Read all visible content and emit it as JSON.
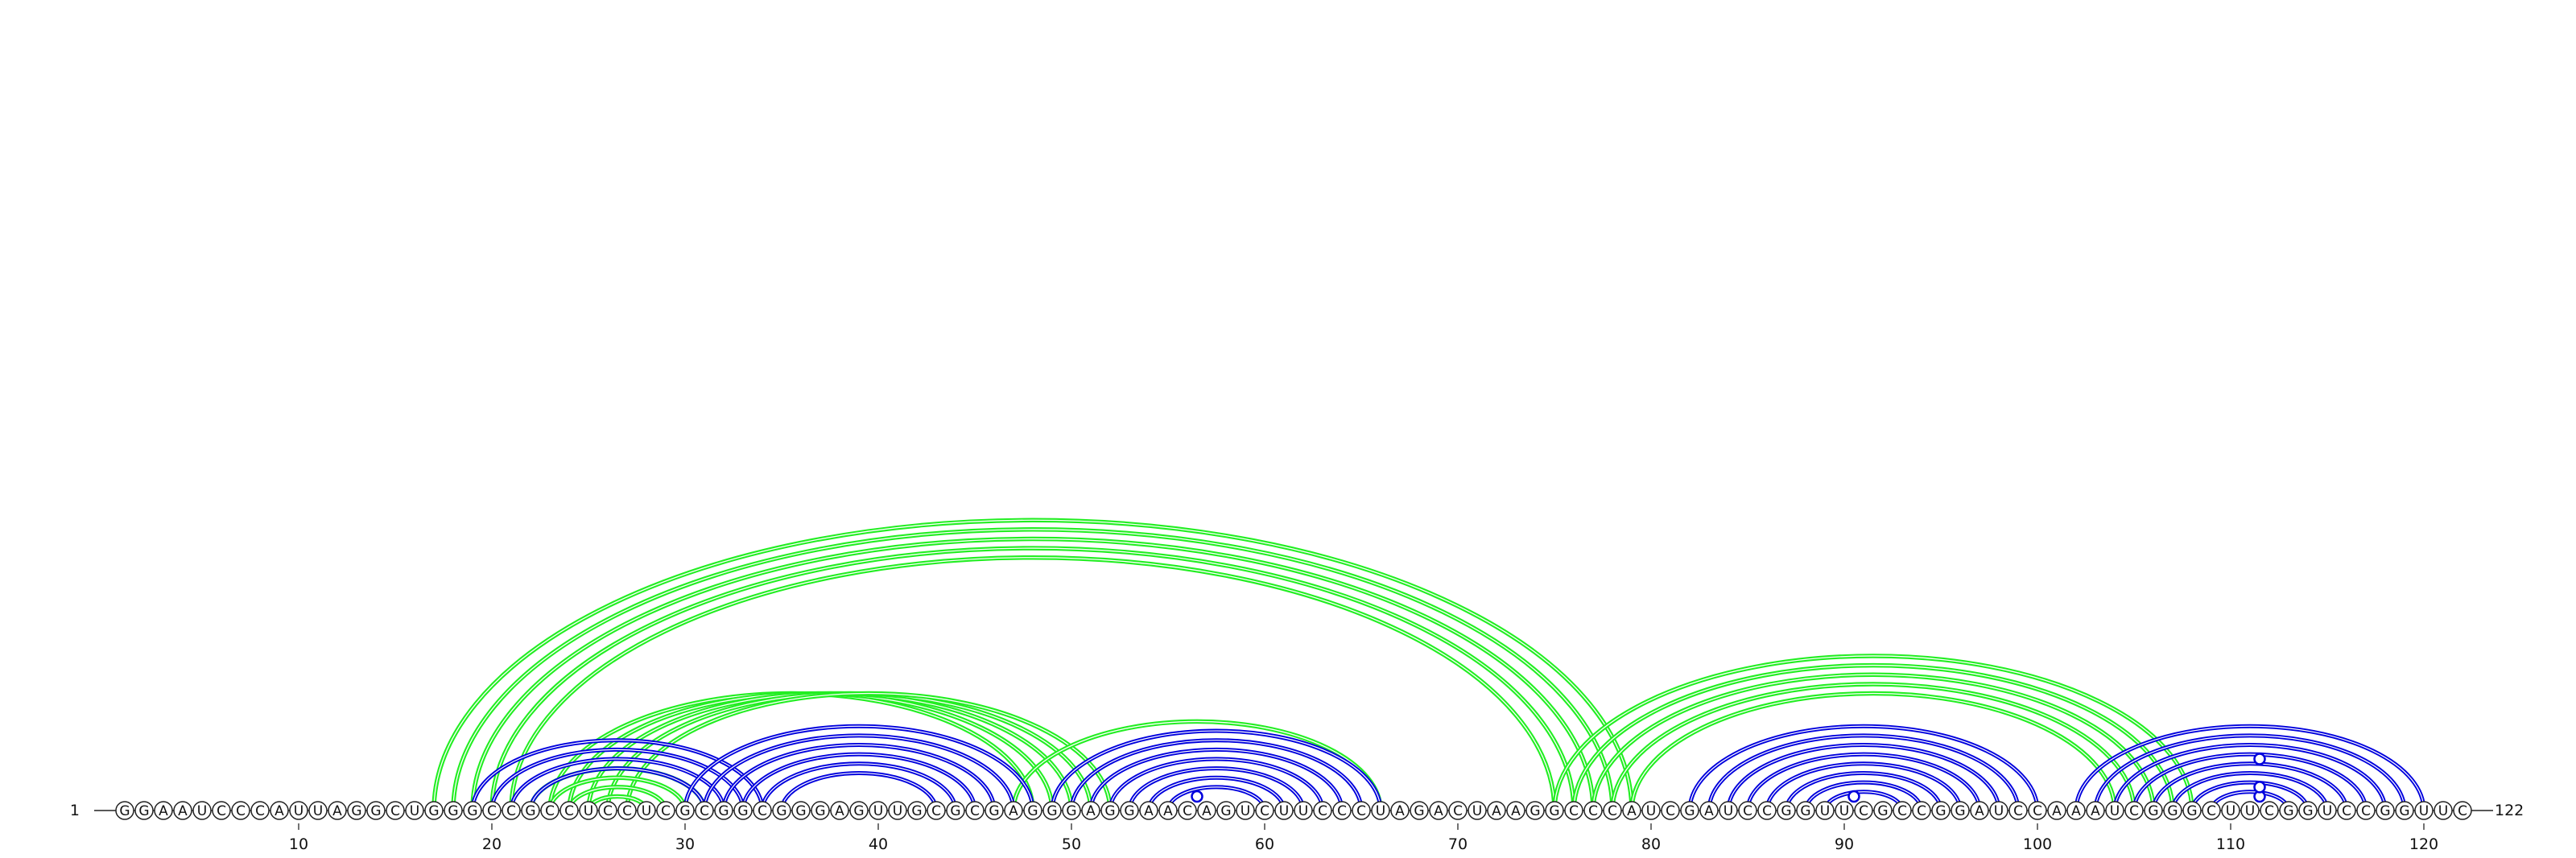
{
  "diagram": {
    "type": "rna-arc-diagram",
    "sequence": "GGAAUCCCAUUAGGCUGGGCCGCCUCCUCGCGGCGGGAGUUGCGCGAGGGAGGAACAGUCUUCCCUAGACUAAGGCCCAUCGAUCCGGUUCGCCGGAUCCAAAUCGGGCUUCGGUCCGGUUC",
    "start_label": "1",
    "end_label": "122",
    "tick_labels": [
      "10",
      "20",
      "30",
      "40",
      "50",
      "60",
      "70",
      "80",
      "90",
      "100",
      "110",
      "120"
    ],
    "colors": {
      "blue_arcs": "#0000dd",
      "green_arcs": "#22ee22",
      "nucleotide_outline": "#222222",
      "text": "#111111"
    },
    "blue_pairs": [
      [
        19,
        34
      ],
      [
        20,
        33
      ],
      [
        21,
        32
      ],
      [
        22,
        31
      ],
      [
        30,
        48
      ],
      [
        31,
        47
      ],
      [
        32,
        46
      ],
      [
        33,
        45
      ],
      [
        34,
        44
      ],
      [
        35,
        43
      ],
      [
        49,
        66
      ],
      [
        50,
        65
      ],
      [
        51,
        64
      ],
      [
        52,
        63
      ],
      [
        53,
        62
      ],
      [
        54,
        61
      ],
      [
        55,
        60
      ],
      [
        82,
        100
      ],
      [
        83,
        99
      ],
      [
        84,
        98
      ],
      [
        85,
        97
      ],
      [
        86,
        96
      ],
      [
        87,
        95
      ],
      [
        88,
        94
      ],
      [
        89,
        93
      ],
      [
        102,
        120
      ],
      [
        103,
        119
      ],
      [
        104,
        118
      ],
      [
        105,
        117
      ],
      [
        106,
        116
      ],
      [
        107,
        115
      ],
      [
        108,
        114
      ],
      [
        109,
        113
      ]
    ],
    "green_pairs": [
      [
        17,
        79
      ],
      [
        18,
        78
      ],
      [
        19,
        77
      ],
      [
        20,
        76
      ],
      [
        21,
        75
      ],
      [
        23,
        48
      ],
      [
        24,
        49
      ],
      [
        25,
        50
      ],
      [
        26,
        51
      ],
      [
        27,
        52
      ],
      [
        22,
        31
      ],
      [
        23,
        30
      ],
      [
        24,
        29
      ],
      [
        25,
        28
      ],
      [
        75,
        108
      ],
      [
        76,
        107
      ],
      [
        77,
        106
      ],
      [
        78,
        105
      ],
      [
        79,
        104
      ],
      [
        47,
        66
      ]
    ],
    "pair_markers": [
      {
        "i": 55,
        "j": 58,
        "color": "#0000dd"
      },
      {
        "i": 89,
        "j": 92,
        "color": "#0000dd"
      },
      {
        "i": 110,
        "j": 113,
        "color": "#0000dd"
      },
      {
        "i": 109,
        "j": 114,
        "color": "#0000dd"
      },
      {
        "i": 106,
        "j": 117,
        "color": "#0000dd"
      }
    ]
  }
}
